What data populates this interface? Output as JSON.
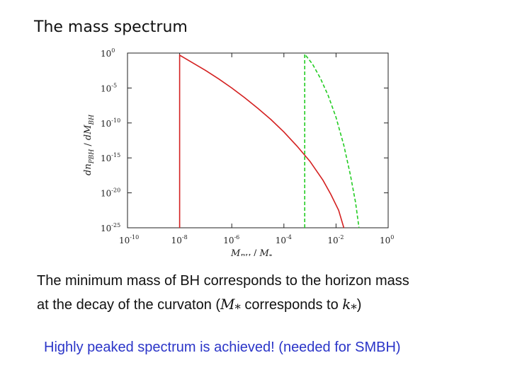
{
  "slide": {
    "title": "The mass spectrum",
    "body_line1": "The minimum mass of BH corresponds to the horizon mass",
    "body_line2_pre": "at the decay of the curvaton (",
    "body_line2_m": "M",
    "body_line2_msub": "*",
    "body_line2_mid": " corresponds to ",
    "body_line2_k": "k",
    "body_line2_ksub": "*",
    "body_line2_post": ")",
    "highlight": "Highly peaked spectrum is achieved! (needed for SMBH)",
    "highlight_color": "#2b35c8"
  },
  "chart_data": {
    "type": "line",
    "xscale": "log",
    "yscale": "log",
    "xlim_exp": [
      -10,
      0
    ],
    "ylim_exp": [
      -25,
      0
    ],
    "xticks": [
      {
        "base": "10",
        "exp": "-10"
      },
      {
        "base": "10",
        "exp": "-8"
      },
      {
        "base": "10",
        "exp": "-6"
      },
      {
        "base": "10",
        "exp": "-4"
      },
      {
        "base": "10",
        "exp": "-2"
      },
      {
        "base": "10",
        "exp": "0"
      }
    ],
    "yticks": [
      {
        "base": "10",
        "exp": "0"
      },
      {
        "base": "10",
        "exp": "-5"
      },
      {
        "base": "10",
        "exp": "-10"
      },
      {
        "base": "10",
        "exp": "-15"
      },
      {
        "base": "10",
        "exp": "-20"
      },
      {
        "base": "10",
        "exp": "-25"
      }
    ],
    "xlabel": {
      "main": "M",
      "sub": "BH",
      "sep": " / ",
      "main2": "M",
      "sub2": "*"
    },
    "ylabel": {
      "main": "dn",
      "sub": "PBH",
      "sep": " / ",
      "main2": "dM",
      "sub2": "BH"
    },
    "grid": false,
    "series": [
      {
        "color": "#d42020",
        "style": "solid",
        "points": [
          [
            -8,
            -25
          ],
          [
            -8,
            -0.3
          ],
          [
            -7.5,
            -1.4
          ],
          [
            -7,
            -2.5
          ],
          [
            -6.5,
            -3.7
          ],
          [
            -6,
            -5.0
          ],
          [
            -5.5,
            -6.4
          ],
          [
            -5,
            -7.9
          ],
          [
            -4.5,
            -9.5
          ],
          [
            -4,
            -11.3
          ],
          [
            -3.5,
            -13.3
          ],
          [
            -3,
            -15.5
          ],
          [
            -2.5,
            -18.2
          ],
          [
            -2.2,
            -20.2
          ],
          [
            -1.9,
            -22.5
          ],
          [
            -1.7,
            -25
          ]
        ]
      },
      {
        "color": "#22cc22",
        "style": "dashed",
        "points": [
          [
            -3.2,
            -25
          ],
          [
            -3.2,
            -0.15
          ],
          [
            -2.9,
            -1.6
          ],
          [
            -2.6,
            -3.6
          ],
          [
            -2.3,
            -6.1
          ],
          [
            -2.0,
            -9.2
          ],
          [
            -1.7,
            -13.2
          ],
          [
            -1.45,
            -17.4
          ],
          [
            -1.25,
            -21.4
          ],
          [
            -1.12,
            -25
          ]
        ]
      }
    ]
  }
}
